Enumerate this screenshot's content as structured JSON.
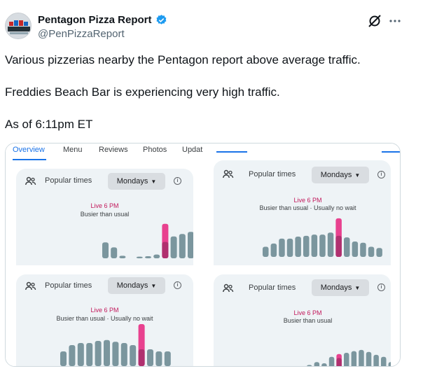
{
  "author": {
    "name": "Pentagon Pizza Report",
    "handle": "@PenPizzaReport",
    "avatar_text": "PENTAGON"
  },
  "icons": {
    "verified": "verified-badge-icon",
    "grok": "grok-icon",
    "more": "more-icon"
  },
  "tweet": {
    "line1": "Various pizzerias nearby the Pentagon report above average traffic.",
    "line2": "Freddies Beach Bar is experiencing very high traffic.",
    "line3": "As of 6:11pm ET"
  },
  "media": {
    "tabs": [
      "Overview",
      "Menu",
      "Reviews",
      "Photos",
      "Updat"
    ],
    "panels": [
      {
        "popular": "Popular times",
        "day": "Mondays",
        "live": "Live 6 PM",
        "status": "Busier than usual",
        "bars": [
          0,
          0,
          0,
          0,
          0,
          0.38,
          0.26,
          0.06,
          0,
          0.04,
          0.05,
          0.09,
          0.82,
          0.52,
          0.58,
          0.63,
          0.65,
          0.33
        ],
        "live_index": 12,
        "live_value": 0.39
      },
      {
        "popular": "Popular times",
        "day": "Mondays",
        "live": "Live 6 PM",
        "status": "Busier than usual · Usually no wait",
        "bars": [
          0.25,
          0.33,
          0.45,
          0.45,
          0.5,
          0.52,
          0.55,
          0.55,
          0.6,
          0.95,
          0.48,
          0.38,
          0.35,
          0.25,
          0.22
        ],
        "live_index": 9,
        "live_value": 0.52
      },
      {
        "popular": "Popular times",
        "day": "Mondays",
        "live": "Live 6 PM",
        "status": "Busier than usual · Usually no wait",
        "bars": [
          0.35,
          0.5,
          0.55,
          0.55,
          0.6,
          0.62,
          0.58,
          0.55,
          0.5,
          1.0,
          0.4,
          0.35,
          0.35
        ],
        "live_index": 9,
        "live_value": 0.4
      },
      {
        "popular": "Popular times",
        "day": "Mondays",
        "live": "Live 6 PM",
        "status": "Busier than usual",
        "bars": [
          0.08,
          0.15,
          0.12,
          0.28,
          0.35,
          0.38,
          0.42,
          0.45,
          0.4,
          0.33,
          0.28,
          0.15
        ],
        "live_index": 4,
        "live_value": 0.25
      }
    ]
  },
  "colors": {
    "bar": "#7b969e",
    "live_bar": "#e8418f",
    "live_fill": "#b0306f",
    "accent": "#1a73e8",
    "live_text": "#c2185b"
  }
}
